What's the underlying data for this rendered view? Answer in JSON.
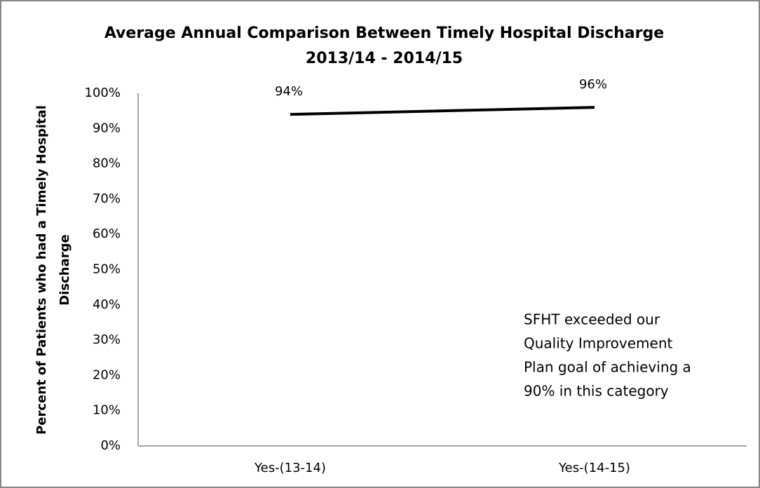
{
  "chart_data": {
    "type": "line",
    "title": [
      "Average Annual  Comparison  Between Timely Hospital Discharge",
      "2013/14 - 2014/15"
    ],
    "y_label": [
      "Percent of Patients who had a Timely Hospital",
      "Discharge"
    ],
    "categories": [
      "Yes-(13-14)",
      "Yes-(14-15)"
    ],
    "values": [
      94,
      96
    ],
    "value_labels": [
      "94%",
      "96%"
    ],
    "color": "#000000",
    "ylim": [
      0,
      100
    ],
    "yticks": [
      {
        "value": 0,
        "label": "0%"
      },
      {
        "value": 10,
        "label": "10%"
      },
      {
        "value": 20,
        "label": "20%"
      },
      {
        "value": 30,
        "label": "30%"
      },
      {
        "value": 40,
        "label": "40%"
      },
      {
        "value": 50,
        "label": "50%"
      },
      {
        "value": 60,
        "label": "60%"
      },
      {
        "value": 70,
        "label": "70%"
      },
      {
        "value": 80,
        "label": "80%"
      },
      {
        "value": 90,
        "label": "90%"
      },
      {
        "value": 100,
        "label": "100%"
      }
    ],
    "grid": false,
    "annotation": [
      "SFHT exceeded our",
      "Quality Improvement",
      "Plan goal of achieving a",
      "90% in this category"
    ]
  }
}
